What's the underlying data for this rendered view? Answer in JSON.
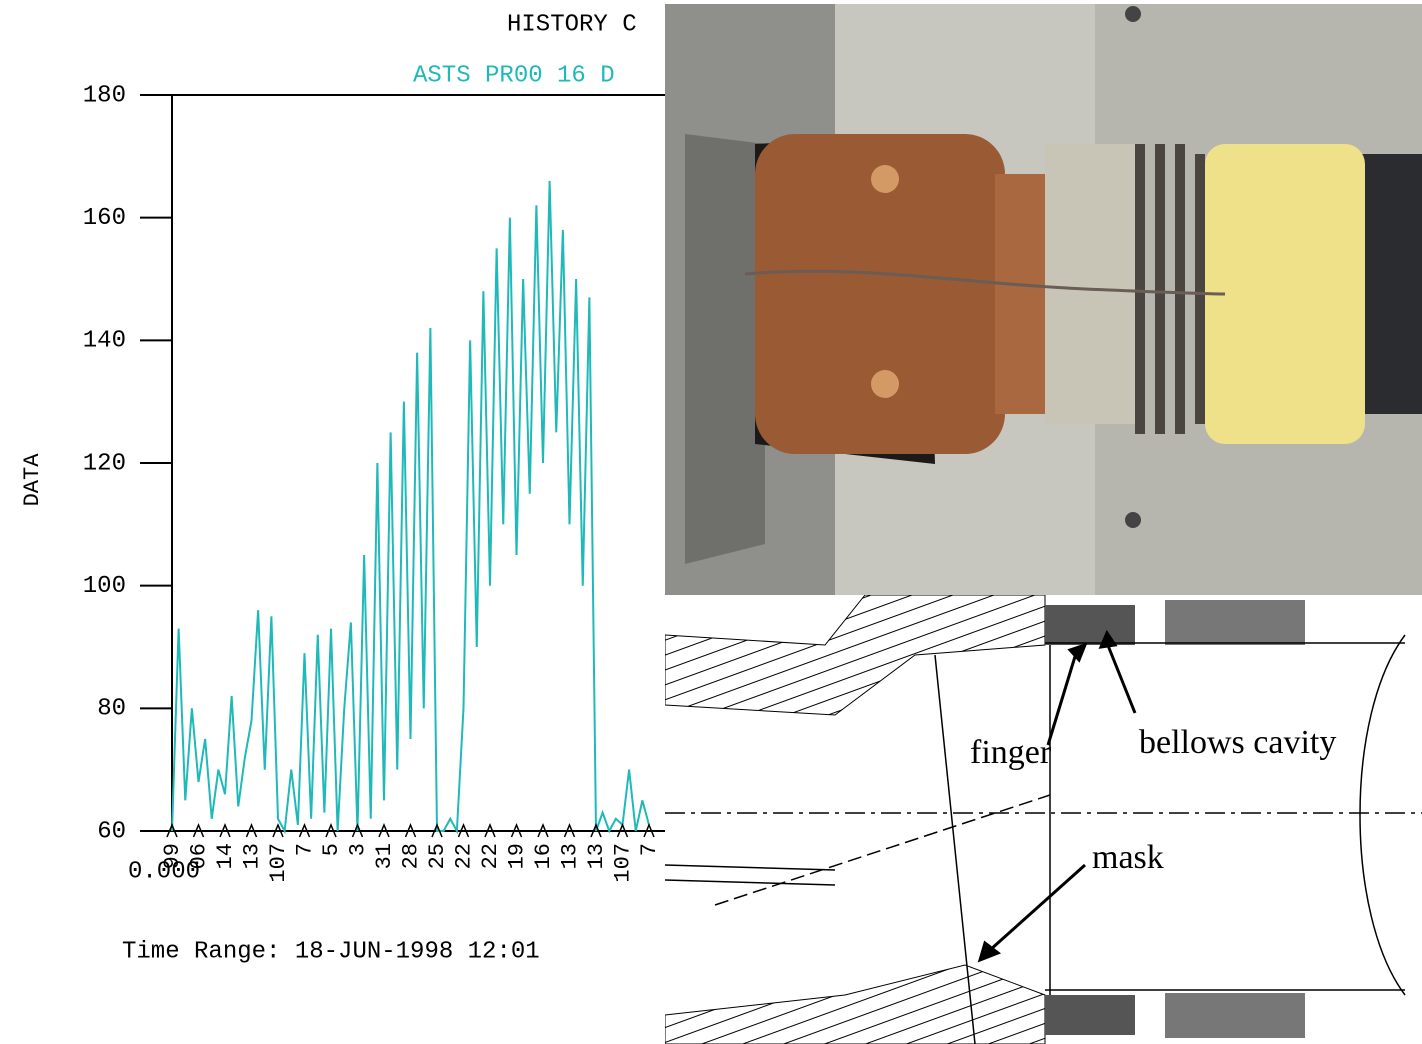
{
  "chart_data": {
    "type": "line",
    "title": "HISTORY C",
    "subtitle": "ASTS PR00 16 D",
    "ylabel": "DATA",
    "xlabel": "0.000",
    "footer": "Time Range: 18-JUN-1998 12:01",
    "x": [
      0,
      0.25,
      0.5,
      0.75,
      1,
      1.25,
      1.5,
      1.75,
      2,
      2.25,
      2.5,
      2.75,
      3,
      3.25,
      3.5,
      3.75,
      4,
      4.25,
      4.5,
      4.75,
      5,
      5.25,
      5.5,
      5.75,
      6,
      6.25,
      6.5,
      6.75,
      7,
      7.25,
      7.5,
      7.75,
      8,
      8.25,
      8.5,
      8.75,
      9,
      9.25,
      9.5,
      9.75,
      10,
      10.25,
      10.5,
      10.75,
      11,
      11.25,
      11.5,
      11.75,
      12,
      12.25,
      12.5,
      12.75,
      13,
      13.25,
      13.5,
      13.75,
      14,
      14.25,
      14.5,
      14.75,
      15,
      15.25,
      15.5,
      15.75,
      16,
      16.25,
      16.5,
      16.75,
      17,
      17.25,
      17.5,
      17.75,
      18
    ],
    "series": [
      {
        "color": "#1fb9b9",
        "values": [
          60,
          93,
          65,
          80,
          68,
          75,
          62,
          70,
          66,
          82,
          64,
          72,
          78,
          96,
          70,
          95,
          62,
          60,
          70,
          61,
          89,
          62,
          92,
          63,
          93,
          60,
          80,
          94,
          60,
          105,
          62,
          120,
          65,
          125,
          70,
          130,
          75,
          138,
          80,
          142,
          60,
          60,
          62,
          60,
          80,
          140,
          90,
          148,
          100,
          155,
          110,
          160,
          105,
          150,
          115,
          162,
          120,
          166,
          125,
          158,
          110,
          150,
          100,
          147,
          60,
          63,
          60,
          62,
          61,
          70,
          60,
          65,
          61
        ]
      }
    ],
    "xlim": [
      0,
      46
    ],
    "xticks": [
      {
        "value": 0,
        "label": "99"
      },
      {
        "value": 1,
        "label": "06"
      },
      {
        "value": 2,
        "label": "14"
      },
      {
        "value": 3,
        "label": "13"
      },
      {
        "value": 4,
        "label": "107"
      },
      {
        "value": 5,
        "label": "7"
      },
      {
        "value": 6,
        "label": "5"
      },
      {
        "value": 7,
        "label": "3"
      },
      {
        "value": 8,
        "label": "31"
      },
      {
        "value": 9,
        "label": "28"
      },
      {
        "value": 10,
        "label": "25"
      },
      {
        "value": 11,
        "label": "22"
      },
      {
        "value": 12,
        "label": "22"
      },
      {
        "value": 13,
        "label": "19"
      },
      {
        "value": 14,
        "label": "16"
      },
      {
        "value": 15,
        "label": "13"
      },
      {
        "value": 16,
        "label": "13"
      },
      {
        "value": 17,
        "label": "107"
      },
      {
        "value": 18,
        "label": "7"
      }
    ],
    "ylim": [
      60,
      180
    ],
    "yticks": [
      60,
      80,
      100,
      120,
      140,
      160,
      180
    ]
  },
  "drawing": {
    "labels": [
      "finger",
      "bellows cavity",
      "mask"
    ]
  }
}
